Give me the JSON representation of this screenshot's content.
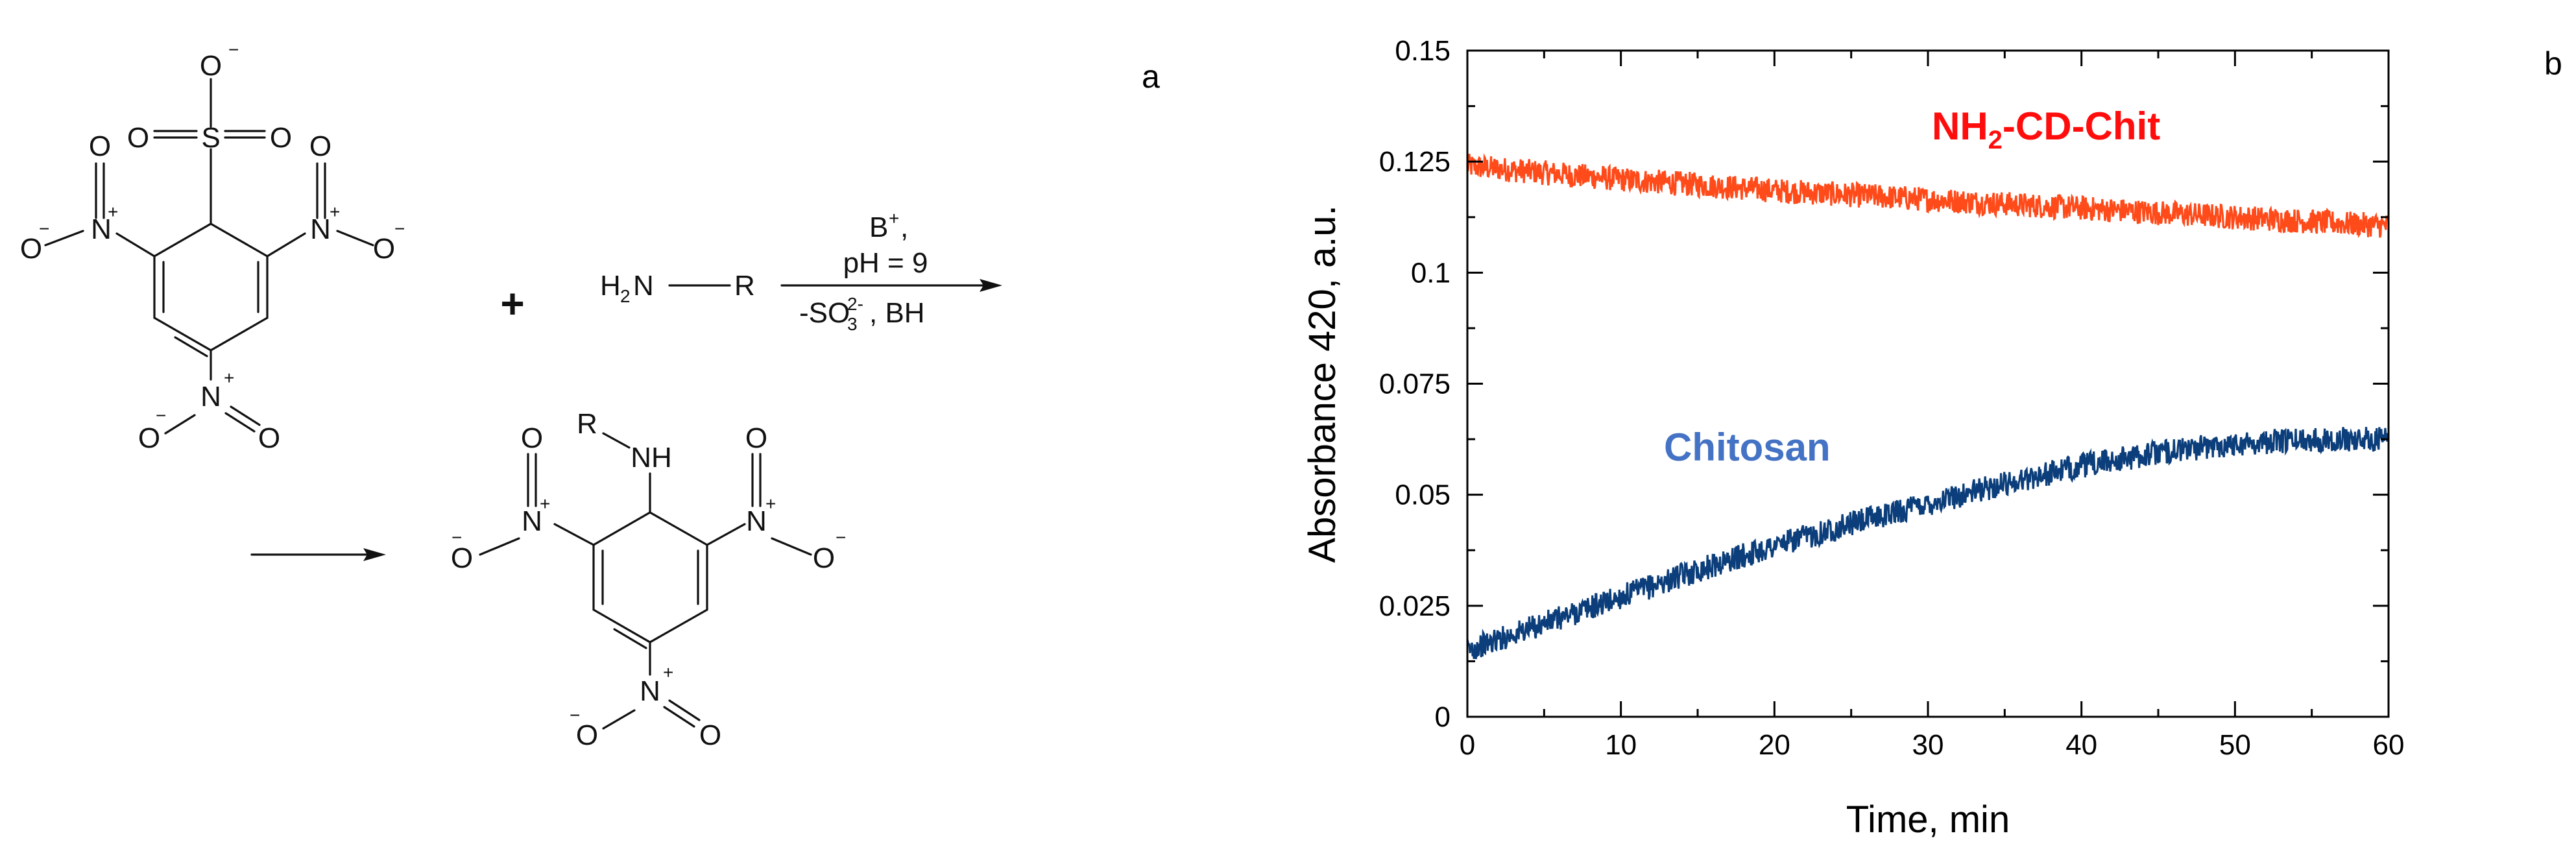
{
  "panels": {
    "a": {
      "letter": "a"
    },
    "b": {
      "letter": "b"
    }
  },
  "reaction": {
    "reagent": {
      "sulfonate_O": "O",
      "sulfonate_charge": "−",
      "sulfonyl_S": "S",
      "oxo_O_left": "O",
      "oxo_O_right": "O",
      "nitro_N": "N",
      "nitro_O": "O",
      "plus": "+",
      "minus": "−"
    },
    "plus_sign": "+",
    "amine": {
      "label": "H",
      "sub": "2",
      "N": "N",
      "R": "R"
    },
    "conditions": {
      "base": "B",
      "base_sup": "+",
      "base_comma": ",",
      "ph": "pH = 9",
      "byproduct_prefix": "-SO",
      "byproduct_sub": "3",
      "byproduct_sup": "2-",
      "byproduct_suffix": ", BH"
    },
    "product": {
      "R": "R",
      "NH": "NH",
      "nitro_N": "N",
      "nitro_O": "O",
      "plus": "+",
      "minus": "−"
    }
  },
  "chart_data": {
    "type": "line",
    "title": "",
    "xlabel": "Time, min",
    "ylabel": "Absorbance 420, a.u.",
    "xlim": [
      0,
      60
    ],
    "ylim": [
      0,
      0.15
    ],
    "x_ticks": [
      0,
      10,
      20,
      30,
      40,
      50,
      60
    ],
    "x_tick_labels": [
      "0",
      "10",
      "20",
      "30",
      "40",
      "50",
      "60"
    ],
    "y_ticks": [
      0,
      0.025,
      0.05,
      0.075,
      0.1,
      0.125,
      0.15
    ],
    "y_tick_labels": [
      "0",
      "0.025",
      "0.05",
      "0.075",
      "0.1",
      "0.125",
      "0.15"
    ],
    "series": [
      {
        "name": "NH2-CD-Chit",
        "label_main": "NH",
        "label_sub": "2",
        "label_rest": "-CD-Chit",
        "color": "#ff4a1a",
        "label_color": "#ff0d0d",
        "noise": 0.0028,
        "x": [
          0,
          5,
          10,
          15,
          20,
          25,
          30,
          35,
          40,
          45,
          50,
          55,
          60
        ],
        "values": [
          0.124,
          0.1225,
          0.121,
          0.1198,
          0.1185,
          0.1175,
          0.1165,
          0.1155,
          0.1145,
          0.1135,
          0.1125,
          0.1115,
          0.1105
        ]
      },
      {
        "name": "Chitosan",
        "label_main": "Chitosan",
        "color": "#0b3e7a",
        "label_color": "#4472c4",
        "noise": 0.0028,
        "x": [
          0,
          5,
          10,
          15,
          20,
          25,
          30,
          35,
          40,
          45,
          50,
          55,
          60
        ],
        "values": [
          0.015,
          0.021,
          0.027,
          0.033,
          0.0385,
          0.0435,
          0.048,
          0.0525,
          0.0565,
          0.0595,
          0.0615,
          0.0625,
          0.0625
        ]
      }
    ]
  }
}
